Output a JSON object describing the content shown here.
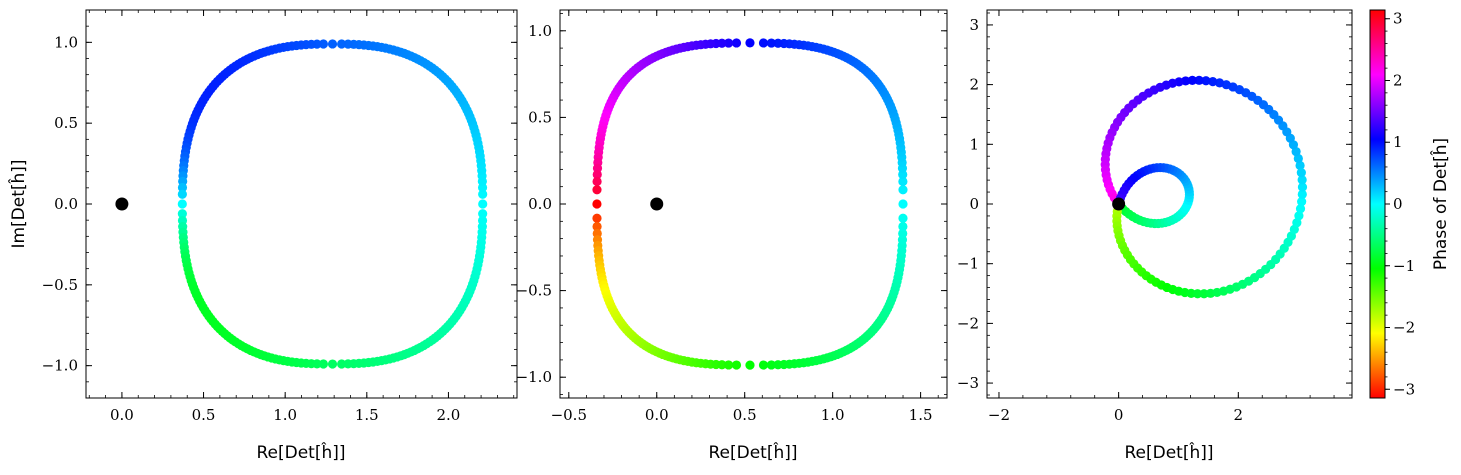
{
  "chart_data": [
    {
      "type": "scatter",
      "panel": 1,
      "xlabel": "Re[Det[ĥ]]",
      "ylabel": "Im[Det[ĥ]]",
      "xlim": [
        -0.22,
        2.42
      ],
      "ylim": [
        -1.2,
        1.2
      ],
      "xticks": [
        0.0,
        0.5,
        1.0,
        1.5,
        2.0
      ],
      "xtick_labels": [
        "0.0",
        "0.5",
        "1.0",
        "1.5",
        "2.0"
      ],
      "yticks": [
        -1.0,
        -0.5,
        0.0,
        0.5,
        1.0
      ],
      "ytick_labels": [
        "−1.0",
        "−0.5",
        "0.0",
        "0.5",
        "1.0"
      ],
      "origin_marker": [
        0,
        0
      ],
      "curve": {
        "kind": "superellipse",
        "cx": 1.29,
        "cy": 0.0,
        "a": 0.92,
        "b": 0.99,
        "n": 2.6,
        "points": 240
      },
      "color_by": "phase"
    },
    {
      "type": "scatter",
      "panel": 2,
      "xlabel": "Re[Det[ĥ]]",
      "ylabel": "",
      "xlim": [
        -0.55,
        1.65
      ],
      "ylim": [
        -1.12,
        1.12
      ],
      "xticks": [
        -0.5,
        0.0,
        0.5,
        1.0,
        1.5
      ],
      "xtick_labels": [
        "−0.5",
        "0.0",
        "0.5",
        "1.0",
        "1.5"
      ],
      "yticks": [
        -1.0,
        -0.5,
        0.0,
        0.5,
        1.0
      ],
      "ytick_labels": [
        "−1.0",
        "−0.5",
        "0.0",
        "0.5",
        "1.0"
      ],
      "origin_marker": [
        0,
        0
      ],
      "curve": {
        "kind": "superellipse",
        "cx": 0.53,
        "cy": 0.0,
        "a": 0.87,
        "b": 0.93,
        "n": 3.0,
        "points": 240
      },
      "color_by": "phase"
    },
    {
      "type": "scatter",
      "panel": 3,
      "xlabel": "Re[Det[ĥ]]",
      "ylabel": "",
      "xlim": [
        -2.2,
        3.9
      ],
      "ylim": [
        -3.25,
        3.25
      ],
      "xticks": [
        -2,
        0,
        2
      ],
      "xtick_labels": [
        "−2",
        "0",
        "2"
      ],
      "yticks": [
        -3,
        -2,
        -1,
        0,
        1,
        2,
        3
      ],
      "ytick_labels": [
        "−3",
        "−2",
        "−1",
        "0",
        "1",
        "2",
        "3"
      ],
      "origin_marker": [
        0,
        0
      ],
      "curve": {
        "kind": "limacon",
        "c": 0.95,
        "d": 2.15,
        "rotation_deg": 12,
        "points": 160
      },
      "color_by": "phase"
    }
  ],
  "colorbar": {
    "label": "Phase of Det[ĥ]",
    "range": [
      -3.14159,
      3.14159
    ],
    "ticks": [
      3,
      2,
      1,
      0,
      -1,
      -2,
      -3
    ],
    "tick_labels": [
      "3",
      "2",
      "1",
      "0",
      "−1",
      "−2",
      "−3"
    ],
    "colormap": "hsv"
  }
}
